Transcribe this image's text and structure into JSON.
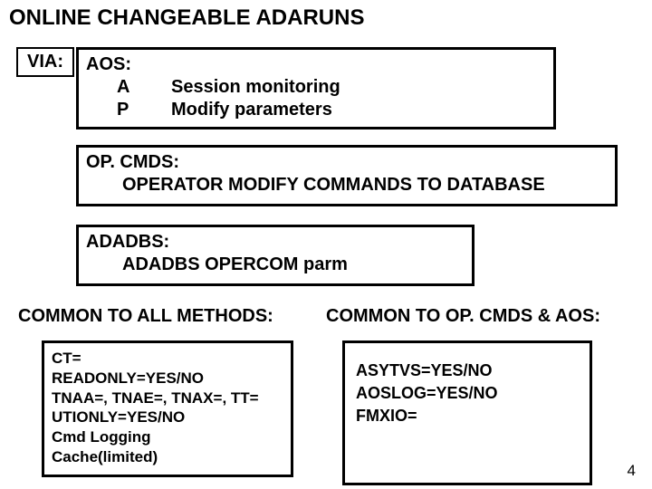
{
  "title": "ONLINE CHANGEABLE ADARUNS",
  "via_label": "VIA:",
  "aos": {
    "header": "AOS:",
    "rows": [
      {
        "letter": "A",
        "text": "Session monitoring"
      },
      {
        "letter": "P",
        "text": "Modify parameters"
      }
    ]
  },
  "opcmds": {
    "header": "OP. CMDS:",
    "line": "OPERATOR MODIFY COMMANDS TO DATABASE"
  },
  "adadbs": {
    "header": "ADADBS:",
    "line": "ADADBS OPERCOM  parm"
  },
  "common_all": {
    "heading": "COMMON TO ALL METHODS:",
    "lines": [
      "CT=",
      "READONLY=YES/NO",
      "TNAA=, TNAE=, TNAX=, TT=",
      "UTIONLY=YES/NO",
      "Cmd Logging",
      "Cache(limited)"
    ]
  },
  "common_op": {
    "heading": "COMMON TO OP. CMDS & AOS:",
    "lines": [
      "ASYTVS=YES/NO",
      "AOSLOG=YES/NO",
      "FMXIO="
    ]
  },
  "page_number": "4",
  "colors": {
    "background": "#ffffff",
    "border": "#000000",
    "text": "#000000"
  }
}
